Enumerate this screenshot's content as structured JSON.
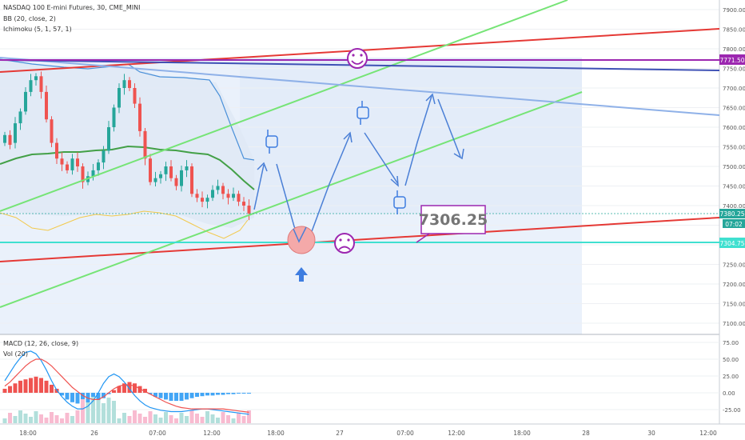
{
  "legend": {
    "symbol_line": "NASDAQ 100 E-mini Futures, 30, CME_MINI",
    "bb_line": "BB (20, close, 2)",
    "ichimoku_line": "Ichimoku (5, 1, 57, 1)",
    "macd_line": "MACD (12, 26, close, 9)",
    "vol_line": "Vol (20)"
  },
  "price_scale": {
    "ticks": [
      "7900.00",
      "7850.00",
      "7800.00",
      "7750.00",
      "7700.00",
      "7650.00",
      "7600.00",
      "7550.00",
      "7500.00",
      "7450.00",
      "7400.00",
      "7350.00",
      "7300.00",
      "7250.00",
      "7200.00",
      "7150.00",
      "7100.00"
    ],
    "labels": [
      {
        "text": "7771.50",
        "color": "#9c27b0"
      },
      {
        "text": "7380.25",
        "color": "#26a69a"
      },
      {
        "text": "07:02",
        "color": "#26a69a"
      },
      {
        "text": "7304.75",
        "color": "#40e0d0"
      }
    ]
  },
  "macd_scale": {
    "ticks": [
      "75.00",
      "50.00",
      "25.00",
      "0.00",
      "-25.00"
    ]
  },
  "time_axis": {
    "labels": [
      "18:00",
      "26",
      "07:00",
      "12:00",
      "18:00",
      "27",
      "07:00",
      "12:00",
      "18:00",
      "28",
      "30",
      "12:00"
    ]
  },
  "annotation": {
    "price_callout": "7306.25",
    "happy_icon": "happy-face-icon",
    "sad_icon": "sad-face-icon",
    "pointer_icons": [
      "pointing-down-hand-icon",
      "pointing-down-hand-icon",
      "pointing-up-hand-icon"
    ],
    "up_arrow_icon": "up-arrow-icon"
  },
  "colors": {
    "up_candle": "#26a69a",
    "down_candle": "#ef5350",
    "bb_basis": "#43a047",
    "bb_upper": "#4a90d9",
    "ichimoku": "#f2c94c",
    "resistance": "#e53935",
    "support_channel": "#76e476",
    "horizontal_purple": "#9c27b0",
    "horizontal_cyan": "#40e0d0",
    "drawing_blue": "#4a7fd6"
  },
  "chart_data": [
    {
      "type": "candlestick",
      "title": "NASDAQ 100 E-mini Futures, 30, CME_MINI",
      "ylim": [
        7080,
        7920
      ],
      "x_axis": [
        "18:00",
        "26",
        "07:00",
        "12:00",
        "18:00",
        "27",
        "07:00",
        "12:00",
        "18:00",
        "28",
        "30",
        "12:00"
      ],
      "close": [
        7580,
        7555,
        7610,
        7640,
        7690,
        7720,
        7730,
        7690,
        7620,
        7560,
        7520,
        7505,
        7490,
        7520,
        7500,
        7460,
        7475,
        7490,
        7510,
        7540,
        7600,
        7650,
        7700,
        7720,
        7700,
        7660,
        7590,
        7520,
        7460,
        7470,
        7480,
        7500,
        7470,
        7450,
        7490,
        7500,
        7430,
        7420,
        7410,
        7420,
        7440,
        7450,
        7430,
        7420,
        7430,
        7410,
        7400,
        7380
      ],
      "open": [
        7560,
        7580,
        7560,
        7610,
        7640,
        7690,
        7720,
        7730,
        7690,
        7620,
        7560,
        7520,
        7505,
        7490,
        7520,
        7500,
        7460,
        7475,
        7490,
        7510,
        7540,
        7600,
        7650,
        7700,
        7720,
        7700,
        7660,
        7590,
        7520,
        7460,
        7470,
        7480,
        7500,
        7470,
        7450,
        7490,
        7500,
        7430,
        7420,
        7410,
        7420,
        7440,
        7450,
        7430,
        7420,
        7430,
        7410,
        7400
      ],
      "levels": {
        "horizontal_purple": 7771.5,
        "horizontal_cyan": 7304.75,
        "last_price": 7380.25,
        "callout": 7306.25
      }
    },
    {
      "type": "bar",
      "title": "MACD (12, 26, close, 9)",
      "ylim": [
        -40,
        80
      ],
      "histogram": [
        6,
        10,
        14,
        18,
        20,
        22,
        24,
        22,
        18,
        12,
        6,
        -4,
        -10,
        -14,
        -16,
        -18,
        -18,
        -16,
        -12,
        -8,
        -2,
        4,
        10,
        14,
        16,
        14,
        10,
        6,
        -2,
        -6,
        -8,
        -10,
        -12,
        -12,
        -12,
        -10,
        -8,
        -6,
        -5,
        -4,
        -4,
        -3,
        -3,
        -2,
        -2,
        -1,
        -1,
        -1
      ],
      "macd": [
        18,
        30,
        42,
        52,
        60,
        62,
        58,
        48,
        34,
        18,
        4,
        -6,
        -14,
        -20,
        -24,
        -24,
        -20,
        -12,
        0,
        14,
        24,
        28,
        24,
        16,
        6,
        -4,
        -12,
        -18,
        -22,
        -24,
        -26,
        -27,
        -28,
        -28,
        -28,
        -27,
        -26,
        -25,
        -24,
        -24,
        -25,
        -26,
        -27,
        -28,
        -29,
        -30,
        -31,
        -32
      ],
      "signal": [
        10,
        16,
        24,
        32,
        40,
        46,
        50,
        50,
        46,
        40,
        32,
        24,
        16,
        8,
        2,
        -4,
        -8,
        -10,
        -10,
        -6,
        0,
        6,
        10,
        12,
        12,
        10,
        6,
        2,
        -2,
        -6,
        -10,
        -14,
        -17,
        -20,
        -22,
        -23,
        -24,
        -24,
        -24,
        -24,
        -24,
        -24,
        -24,
        -25,
        -26,
        -27,
        -28,
        -29
      ]
    }
  ]
}
